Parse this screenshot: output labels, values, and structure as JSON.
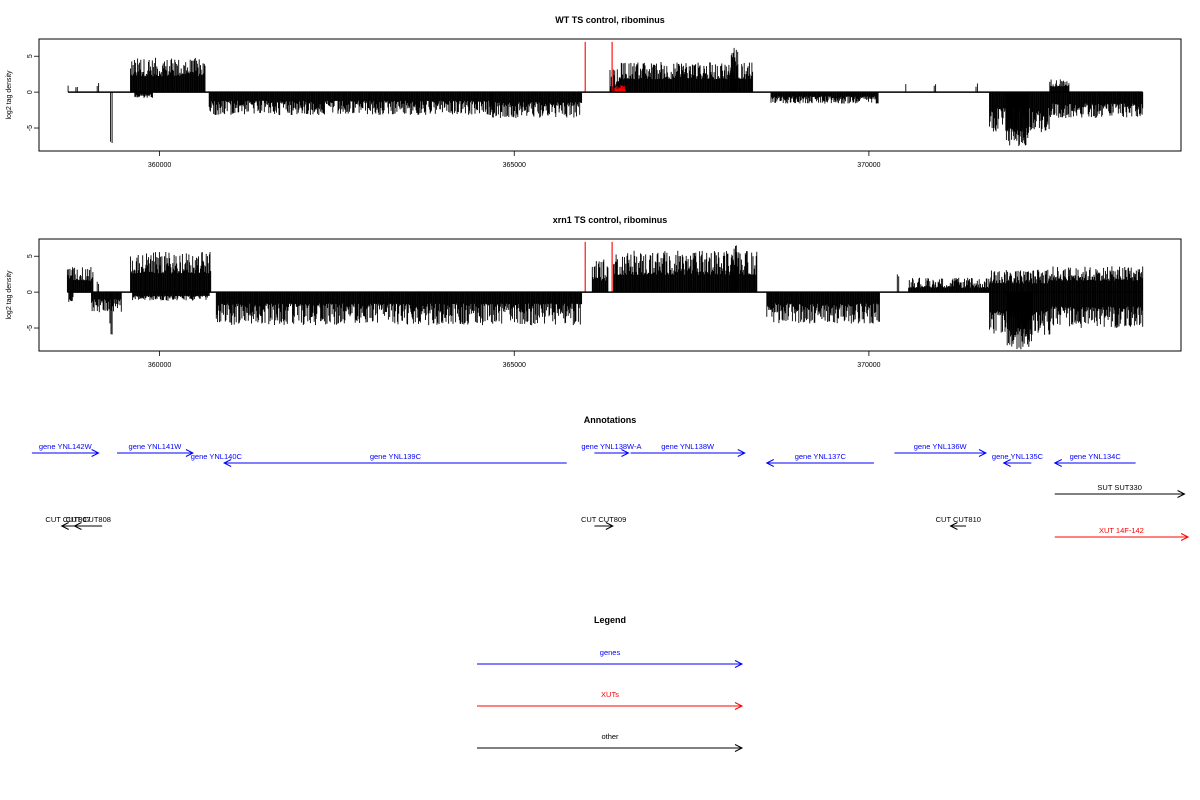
{
  "chart_data": [
    {
      "type": "bar",
      "title": "WT TS control, ribominus",
      "xlabel": "",
      "ylabel": "log2 tag density",
      "xlim": [
        358300,
        374400
      ],
      "ylim": [
        -8.2,
        7.4
      ],
      "xticks": [
        360000,
        365000,
        370000
      ],
      "xtick_labels": [
        "360000",
        "365000",
        "370000"
      ],
      "yticks": [
        -5,
        0,
        5
      ],
      "ytick_labels": [
        "-5",
        "0",
        "5"
      ],
      "grid": false,
      "series": [
        {
          "color": "#000000",
          "segments": [
            {
              "x": [
                358710,
                358720
              ],
              "y": [
                1.2,
                0.6
              ]
            },
            {
              "x": [
                358820,
                358840
              ],
              "y": [
                0.9,
                0.5
              ]
            },
            {
              "x": [
                359120,
                359140
              ],
              "y": [
                1.6,
                0.8
              ]
            },
            {
              "x": [
                359310,
                359330
              ],
              "y": [
                -7.8,
                -5.5
              ]
            },
            {
              "x": [
                359590,
                360640
              ],
              "y": [
                4.8,
                2.2
              ]
            },
            {
              "x": [
                359650,
                359900
              ],
              "y": [
                -0.8,
                -0.3
              ]
            },
            {
              "x": [
                360700,
                364700
              ],
              "y": [
                -3.2,
                -1.2
              ]
            },
            {
              "x": [
                364650,
                365950
              ],
              "y": [
                -3.6,
                -1.4
              ]
            },
            {
              "x": [
                366350,
                366500
              ],
              "y": [
                3.2,
                0.8
              ]
            },
            {
              "x": [
                366500,
                368360
              ],
              "y": [
                4.2,
                1.8
              ]
            },
            {
              "x": [
                368050,
                368150
              ],
              "y": [
                6.2,
                3.0
              ]
            },
            {
              "x": [
                368620,
                370130
              ],
              "y": [
                -1.6,
                -0.6
              ]
            },
            {
              "x": [
                370520,
                370530
              ],
              "y": [
                2.0,
                1.0
              ]
            },
            {
              "x": [
                370920,
                370940
              ],
              "y": [
                1.7,
                0.8
              ]
            },
            {
              "x": [
                371510,
                371530
              ],
              "y": [
                1.4,
                0.6
              ]
            },
            {
              "x": [
                371700,
                372550
              ],
              "y": [
                -5.6,
                -2.2
              ]
            },
            {
              "x": [
                371930,
                372250
              ],
              "y": [
                -7.6,
                -5.0
              ]
            },
            {
              "x": [
                372550,
                373860
              ],
              "y": [
                -3.6,
                -1.6
              ]
            },
            {
              "x": [
                372550,
                372820
              ],
              "y": [
                1.8,
                0.8
              ]
            }
          ]
        },
        {
          "color": "#ff0000",
          "segments": [
            {
              "x": [
                366000,
                366010
              ],
              "y": [
                7.0,
                7.0
              ]
            },
            {
              "x": [
                366380,
                366390
              ],
              "y": [
                7.0,
                7.0
              ]
            },
            {
              "x": [
                366420,
                366560
              ],
              "y": [
                1.0,
                0.4
              ]
            }
          ]
        }
      ]
    },
    {
      "type": "bar",
      "title": "xrn1 TS control, ribominus",
      "xlabel": "",
      "ylabel": "log2 tag density",
      "xlim": [
        358300,
        374400
      ],
      "ylim": [
        -8.2,
        7.4
      ],
      "xticks": [
        360000,
        365000,
        370000
      ],
      "xtick_labels": [
        "360000",
        "365000",
        "370000"
      ],
      "yticks": [
        -5,
        0,
        5
      ],
      "ytick_labels": [
        "-5",
        "0",
        "5"
      ],
      "grid": false,
      "series": [
        {
          "color": "#000000",
          "segments": [
            {
              "x": [
                358700,
                359060
              ],
              "y": [
                3.6,
                1.6
              ]
            },
            {
              "x": [
                358720,
                358780
              ],
              "y": [
                -1.4,
                -0.6
              ]
            },
            {
              "x": [
                359040,
                359460
              ],
              "y": [
                -2.8,
                -1.0
              ]
            },
            {
              "x": [
                359300,
                359330
              ],
              "y": [
                -6.4,
                -4.0
              ]
            },
            {
              "x": [
                359120,
                359140
              ],
              "y": [
                2.0,
                1.0
              ]
            },
            {
              "x": [
                359590,
                360720
              ],
              "y": [
                5.6,
                2.6
              ]
            },
            {
              "x": [
                359620,
                360700
              ],
              "y": [
                -1.2,
                -0.5
              ]
            },
            {
              "x": [
                360800,
                365950
              ],
              "y": [
                -4.6,
                -1.6
              ]
            },
            {
              "x": [
                366100,
                366320
              ],
              "y": [
                4.6,
                1.6
              ]
            },
            {
              "x": [
                366400,
                368420
              ],
              "y": [
                5.8,
                2.4
              ]
            },
            {
              "x": [
                368050,
                368150
              ],
              "y": [
                6.6,
                3.2
              ]
            },
            {
              "x": [
                368560,
                370150
              ],
              "y": [
                -4.4,
                -1.6
              ]
            },
            {
              "x": [
                370400,
                370420
              ],
              "y": [
                2.8,
                1.4
              ]
            },
            {
              "x": [
                370560,
                371700
              ],
              "y": [
                2.0,
                0.6
              ]
            },
            {
              "x": [
                371700,
                372550
              ],
              "y": [
                -6.0,
                -2.6
              ]
            },
            {
              "x": [
                371950,
                372300
              ],
              "y": [
                -8.0,
                -5.0
              ]
            },
            {
              "x": [
                371700,
                372550
              ],
              "y": [
                3.2,
                1.2
              ]
            },
            {
              "x": [
                372550,
                373860
              ],
              "y": [
                -5.0,
                -2.0
              ]
            },
            {
              "x": [
                372550,
                373860
              ],
              "y": [
                3.6,
                1.6
              ]
            }
          ]
        },
        {
          "color": "#ff0000",
          "segments": [
            {
              "x": [
                366000,
                366010
              ],
              "y": [
                7.0,
                7.0
              ]
            },
            {
              "x": [
                366380,
                366390
              ],
              "y": [
                7.0,
                7.0
              ]
            }
          ]
        }
      ]
    }
  ],
  "annotations_title": "Annotations",
  "annotations": [
    {
      "label": "gene YNL142W",
      "color": "#0000ff",
      "x_start": 358200,
      "x_end": 359140,
      "row": 1
    },
    {
      "label": "gene YNL141W",
      "color": "#0000ff",
      "x_start": 359400,
      "x_end": 360470,
      "row": 1
    },
    {
      "label": "gene YNL140C",
      "color": "#0000ff",
      "x_start": 360800,
      "x_end": 360870,
      "row": 2,
      "label_only": true
    },
    {
      "label": "gene YNL139C",
      "color": "#0000ff",
      "x_start": 365740,
      "x_end": 360910,
      "row": 2
    },
    {
      "label": "gene YNL138W-A",
      "color": "#0000ff",
      "x_start": 366130,
      "x_end": 366610,
      "row": 1
    },
    {
      "label": "gene YNL138W",
      "color": "#0000ff",
      "x_start": 366640,
      "x_end": 368250,
      "row": 1
    },
    {
      "label": "gene YNL137C",
      "color": "#0000ff",
      "x_start": 370070,
      "x_end": 368560,
      "row": 2
    },
    {
      "label": "gene YNL136W",
      "color": "#0000ff",
      "x_start": 370360,
      "x_end": 371650,
      "row": 1
    },
    {
      "label": "gene YNL135C",
      "color": "#0000ff",
      "x_start": 372290,
      "x_end": 371900,
      "row": 2
    },
    {
      "label": "gene YNL134C",
      "color": "#0000ff",
      "x_start": 373760,
      "x_end": 372620,
      "row": 2
    },
    {
      "label": "SUT SUT330",
      "color": "#000000",
      "x_start": 372620,
      "x_end": 374450,
      "row": 3
    },
    {
      "label": "CUT CUT807",
      "color": "#000000",
      "x_start": 358800,
      "x_end": 358620,
      "row": 4
    },
    {
      "label": "CUT CUT808",
      "color": "#000000",
      "x_start": 359190,
      "x_end": 358800,
      "row": 4
    },
    {
      "label": "CUT CUT809",
      "color": "#000000",
      "x_start": 366130,
      "x_end": 366390,
      "row": 4
    },
    {
      "label": "CUT CUT810",
      "color": "#000000",
      "x_start": 371370,
      "x_end": 371150,
      "row": 4
    },
    {
      "label": "XUT 14F-142",
      "color": "#ff0000",
      "x_start": 372620,
      "x_end": 374500,
      "row": 5
    }
  ],
  "legend_title": "Legend",
  "legend": [
    {
      "label": "genes",
      "color": "#0000ff"
    },
    {
      "label": "XUTs",
      "color": "#ff0000"
    },
    {
      "label": "other",
      "color": "#000000"
    }
  ]
}
